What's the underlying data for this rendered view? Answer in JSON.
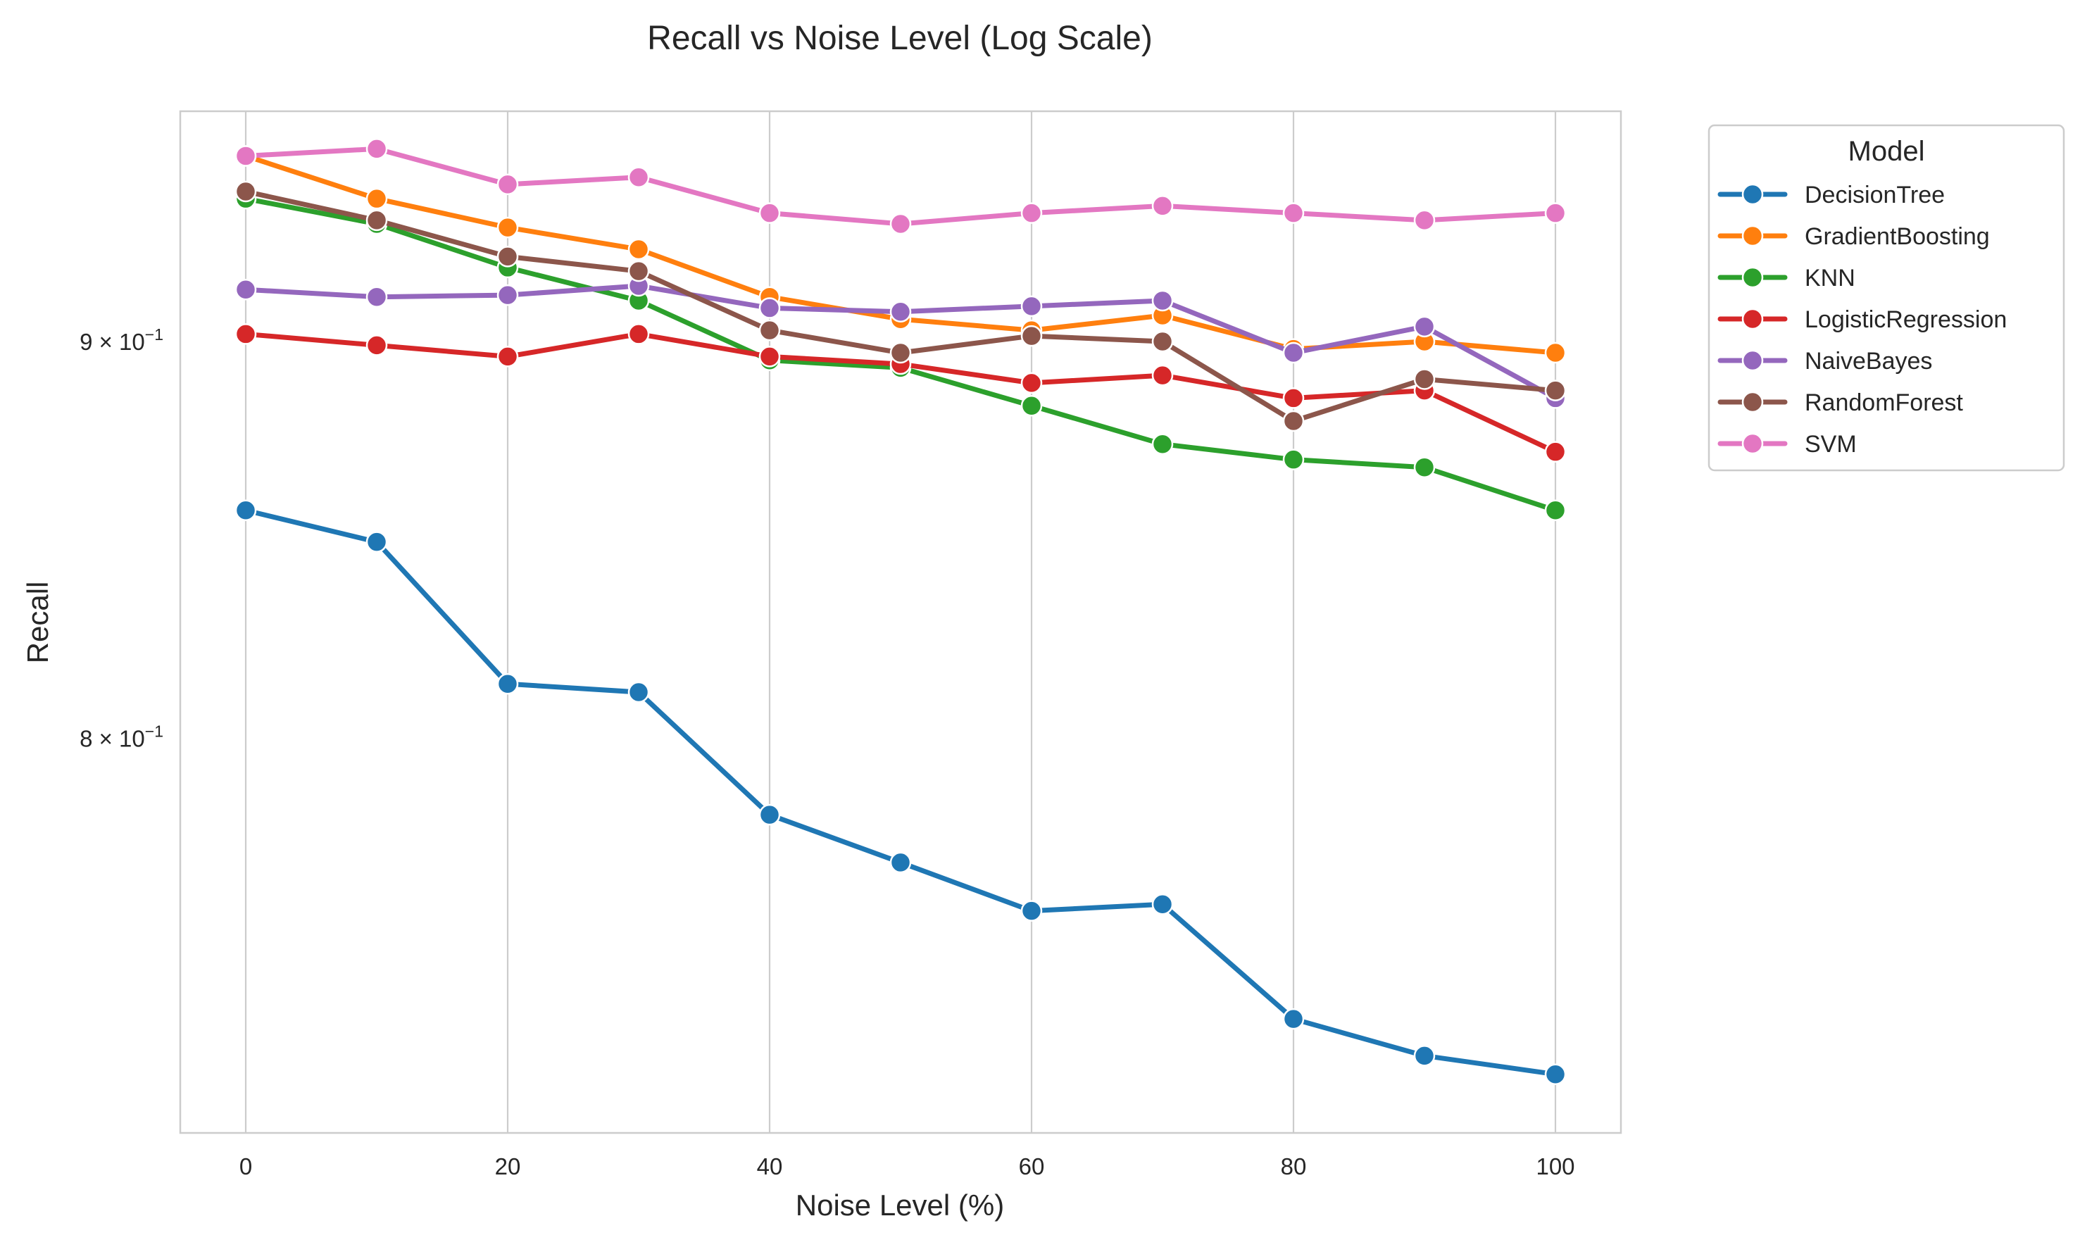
{
  "chart_data": {
    "type": "line",
    "title": "Recall vs Noise Level (Log Scale)",
    "xlabel": "Noise Level (%)",
    "ylabel": "Recall",
    "yscale": "log",
    "xlim": [
      -5,
      105
    ],
    "ylim": [
      0.7115,
      0.9637
    ],
    "x_ticks": [
      0,
      20,
      40,
      60,
      80,
      100
    ],
    "y_ticks": [
      {
        "value": 0.8,
        "label_base": "8 × 10",
        "label_exp": "−1"
      },
      {
        "value": 0.9,
        "label_base": "9 × 10",
        "label_exp": "−1"
      }
    ],
    "grid": true,
    "legend": {
      "title": "Model",
      "placement": "outside-top-right"
    },
    "x": [
      0,
      10,
      20,
      30,
      40,
      50,
      60,
      70,
      80,
      90,
      100
    ],
    "series": [
      {
        "name": "DecisionTree",
        "color": "#1f77b4",
        "values": [
          0.856,
          0.848,
          0.813,
          0.811,
          0.782,
          0.771,
          0.76,
          0.7615,
          0.736,
          0.728,
          0.724
        ]
      },
      {
        "name": "GradientBoosting",
        "color": "#ff7f0e",
        "values": [
          0.951,
          0.939,
          0.931,
          0.925,
          0.912,
          0.906,
          0.903,
          0.907,
          0.898,
          0.9,
          0.897
        ]
      },
      {
        "name": "KNN",
        "color": "#2ca02c",
        "values": [
          0.939,
          0.932,
          0.92,
          0.911,
          0.895,
          0.893,
          0.883,
          0.873,
          0.869,
          0.867,
          0.856
        ]
      },
      {
        "name": "LogisticRegression",
        "color": "#d62728",
        "values": [
          0.902,
          0.899,
          0.896,
          0.902,
          0.896,
          0.894,
          0.889,
          0.891,
          0.885,
          0.887,
          0.871
        ]
      },
      {
        "name": "NaiveBayes",
        "color": "#9467bd",
        "values": [
          0.914,
          0.912,
          0.9125,
          0.915,
          0.909,
          0.908,
          0.9095,
          0.911,
          0.897,
          0.904,
          0.885
        ]
      },
      {
        "name": "RandomForest",
        "color": "#8c564b",
        "values": [
          0.941,
          0.933,
          0.923,
          0.919,
          0.903,
          0.897,
          0.9015,
          0.9,
          0.879,
          0.89,
          0.887
        ]
      },
      {
        "name": "SVM",
        "color": "#e377c2",
        "values": [
          0.951,
          0.953,
          0.943,
          0.945,
          0.935,
          0.932,
          0.935,
          0.937,
          0.935,
          0.933,
          0.935
        ]
      }
    ]
  }
}
